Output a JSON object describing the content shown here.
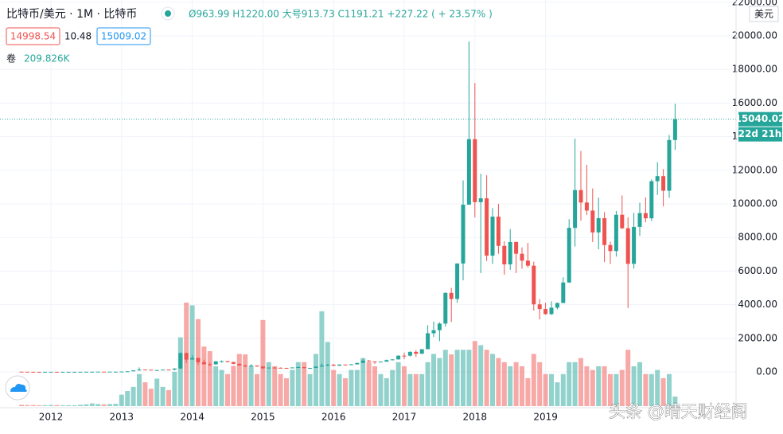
{
  "header": {
    "symbol": "比特币/美元 · 1M · 比特币",
    "ohlc": "Ø963.99 H1220.00 大号913.73 C1191.21 +227.22 ( + 23.57% )",
    "bid": "14998.54",
    "spread": "10.48",
    "ask": "15009.02",
    "volume_title": "卷",
    "volume_text": "209.826K",
    "watermark": "头条 @晴天财经阁"
  },
  "chart_data": {
    "type": "candlestick",
    "currency": "美元",
    "last_price": 15040.02,
    "countdown": "22d 21h",
    "up_color": "#26a69a",
    "down_color": "#ef5350",
    "grid": true,
    "categories": [
      null,
      null,
      null,
      null,
      null,
      "2012",
      null,
      null,
      null,
      null,
      null,
      null,
      null,
      null,
      null,
      null,
      null,
      "2013",
      null,
      null,
      null,
      null,
      null,
      null,
      null,
      null,
      null,
      null,
      null,
      "2014",
      null,
      null,
      null,
      null,
      null,
      null,
      null,
      null,
      null,
      null,
      null,
      "2015",
      null,
      null,
      null,
      null,
      null,
      null,
      null,
      null,
      null,
      null,
      null,
      "2016",
      null,
      null,
      null,
      null,
      null,
      null,
      null,
      null,
      null,
      null,
      null,
      "2017",
      null,
      null,
      null,
      null,
      null,
      null,
      null,
      null,
      null,
      null,
      null,
      "2018",
      null,
      null,
      null,
      null,
      null,
      null,
      null,
      null,
      null,
      null,
      null,
      "2019",
      null,
      null,
      null,
      null,
      null,
      null,
      null,
      null,
      null,
      null,
      null,
      null,
      null,
      null,
      null,
      null,
      null,
      null,
      null,
      null,
      null,
      null
    ],
    "open": [
      13.3,
      8.2,
      5.1,
      3.2,
      3.0,
      4.7,
      5.5,
      4.9,
      4.9,
      5.0,
      5.1,
      6.7,
      9.3,
      10.1,
      12.4,
      11.2,
      12.6,
      13.5,
      20.4,
      33.4,
      93,
      139,
      129,
      97,
      106,
      135,
      133,
      198,
      1120,
      732,
      830,
      573,
      457,
      448,
      630,
      640,
      586,
      478,
      386,
      338,
      378,
      320,
      217,
      254,
      244,
      236,
      230,
      263,
      284,
      230,
      236,
      314,
      377,
      430,
      368,
      437,
      416,
      448,
      531,
      673,
      624,
      573,
      608,
      700,
      742,
      964,
      963.99,
      1191.21,
      1080,
      1350,
      2300,
      2480,
      2875,
      4700,
      4340,
      6450,
      9950,
      13850,
      10100,
      10330,
      6920,
      9240,
      7500,
      6400,
      7730,
      7030,
      6620,
      6320,
      4020,
      3740,
      3440,
      3820,
      4100,
      5320,
      8570,
      10820,
      10080,
      9600,
      8300,
      9150,
      7550,
      7190,
      9350,
      8550,
      6430,
      8630,
      9450,
      9140,
      11350,
      11650,
      10780,
      13800
    ],
    "high": [
      13.9,
      8.5,
      5.2,
      3.5,
      4.8,
      7.2,
      6.2,
      5.4,
      5.3,
      5.2,
      6.8,
      9.6,
      15.4,
      12.8,
      12.9,
      12.8,
      13.8,
      20.8,
      33.8,
      95,
      266,
      140,
      130,
      109,
      136,
      146,
      218,
      1163,
      1150,
      1000,
      850,
      720,
      550,
      630,
      680,
      650,
      600,
      500,
      420,
      460,
      380,
      320,
      265,
      300,
      264,
      248,
      268,
      315,
      285,
      244,
      328,
      502,
      468,
      462,
      446,
      440,
      467,
      552,
      780,
      700,
      624,
      614,
      730,
      760,
      980,
      1150,
      1220,
      1290,
      1350,
      2780,
      2990,
      2950,
      4740,
      5000,
      6470,
      11400,
      19666,
      17200,
      11790,
      11700,
      9750,
      10000,
      7770,
      8500,
      7750,
      7410,
      7680,
      6560,
      4330,
      4110,
      4200,
      4130,
      5630,
      9090,
      13880,
      13150,
      12320,
      10920,
      10370,
      9510,
      7750,
      9580,
      10500,
      9200,
      9460,
      10070,
      10380,
      11450,
      12480,
      12070,
      14100,
      15960
    ],
    "low": [
      7.0,
      4.8,
      2.3,
      2.0,
      2.8,
      4.6,
      4.2,
      4.6,
      4.8,
      4.9,
      5.1,
      6.5,
      7.1,
      9.9,
      10.2,
      10.4,
      12.5,
      13.2,
      19.4,
      33,
      50,
      98,
      85,
      64,
      100,
      116,
      92,
      198,
      522,
      732,
      420,
      440,
      340,
      420,
      550,
      565,
      450,
      370,
      275,
      320,
      310,
      152,
      210,
      238,
      214,
      228,
      220,
      254,
      198,
      225,
      236,
      310,
      350,
      350,
      366,
      390,
      412,
      441,
      530,
      590,
      470,
      570,
      606,
      680,
      740,
      750,
      913.73,
      890,
      1070,
      1350,
      2080,
      1830,
      2690,
      2970,
      4110,
      5450,
      9950,
      9200,
      5880,
      6600,
      6430,
      7030,
      5780,
      6070,
      5880,
      6140,
      6200,
      3650,
      3120,
      3400,
      3380,
      3720,
      4090,
      5300,
      7460,
      9000,
      9340,
      7730,
      7300,
      6530,
      6420,
      6860,
      8500,
      3800,
      6150,
      8100,
      8900,
      8980,
      10530,
      9850,
      10370,
      13220
    ],
    "close": [
      8.2,
      5.1,
      3.2,
      3.0,
      4.7,
      5.5,
      4.9,
      4.9,
      5.0,
      5.1,
      6.7,
      9.3,
      10.1,
      12.4,
      11.2,
      12.6,
      13.5,
      20.4,
      33.4,
      93,
      139,
      129,
      97,
      106,
      135,
      133,
      198,
      1120,
      732,
      830,
      573,
      457,
      448,
      630,
      640,
      586,
      478,
      386,
      338,
      378,
      320,
      217,
      254,
      244,
      236,
      230,
      263,
      284,
      230,
      236,
      314,
      377,
      430,
      368,
      437,
      416,
      448,
      531,
      673,
      624,
      573,
      608,
      700,
      742,
      964,
      963.99,
      1191.21,
      1080,
      1350,
      2300,
      2480,
      2875,
      4700,
      4340,
      6450,
      9950,
      13850,
      10100,
      10330,
      6920,
      9240,
      7500,
      6400,
      7730,
      7030,
      6620,
      6320,
      4020,
      3740,
      3440,
      3820,
      4100,
      5320,
      8570,
      10820,
      10080,
      9600,
      8300,
      9150,
      7550,
      7190,
      9350,
      8550,
      6430,
      8630,
      9450,
      9140,
      11350,
      11650,
      10780,
      13800,
      15040.02
    ],
    "volume": [
      30,
      25,
      25,
      20,
      20,
      25,
      25,
      20,
      20,
      20,
      30,
      40,
      60,
      45,
      40,
      45,
      50,
      250,
      330,
      420,
      700,
      520,
      380,
      600,
      420,
      350,
      750,
      1500,
      2260,
      2200,
      1900,
      1300,
      1200,
      870,
      790,
      700,
      880,
      1140,
      1130,
      870,
      700,
      1880,
      960,
      870,
      700,
      610,
      790,
      960,
      960,
      700,
      1140,
      2070,
      1400,
      790,
      700,
      610,
      790,
      790,
      1050,
      960,
      870,
      700,
      610,
      790,
      960,
      870,
      700,
      700,
      700,
      960,
      1140,
      1050,
      1230,
      1130,
      1230,
      1230,
      1230,
      1420,
      1330,
      1230,
      1140,
      1050,
      960,
      870,
      960,
      870,
      610,
      1140,
      960,
      700,
      700,
      520,
      700,
      960,
      960,
      1050,
      870,
      790,
      870,
      870,
      700,
      700,
      790,
      1230,
      870,
      960,
      700,
      700,
      790,
      610,
      700,
      209.826
    ],
    "ylim": [
      -2133,
      22133
    ],
    "yticks": [
      {
        "value": 0,
        "label": "0.00"
      },
      {
        "value": 2000,
        "label": "2000.00"
      },
      {
        "value": 4000,
        "label": "4000.00"
      },
      {
        "value": 6000,
        "label": "6000.00"
      },
      {
        "value": 8000,
        "label": "8000.00"
      },
      {
        "value": 10000,
        "label": "10000.00"
      },
      {
        "value": 12000,
        "label": "12000.00"
      },
      {
        "value": 14000,
        "label": "14000.00"
      },
      {
        "value": 16000,
        "label": "16000.00"
      },
      {
        "value": 18000,
        "label": "18000.00"
      },
      {
        "value": 20000,
        "label": "20000.00"
      },
      {
        "value": 22000,
        "label": "22000.00"
      }
    ]
  }
}
